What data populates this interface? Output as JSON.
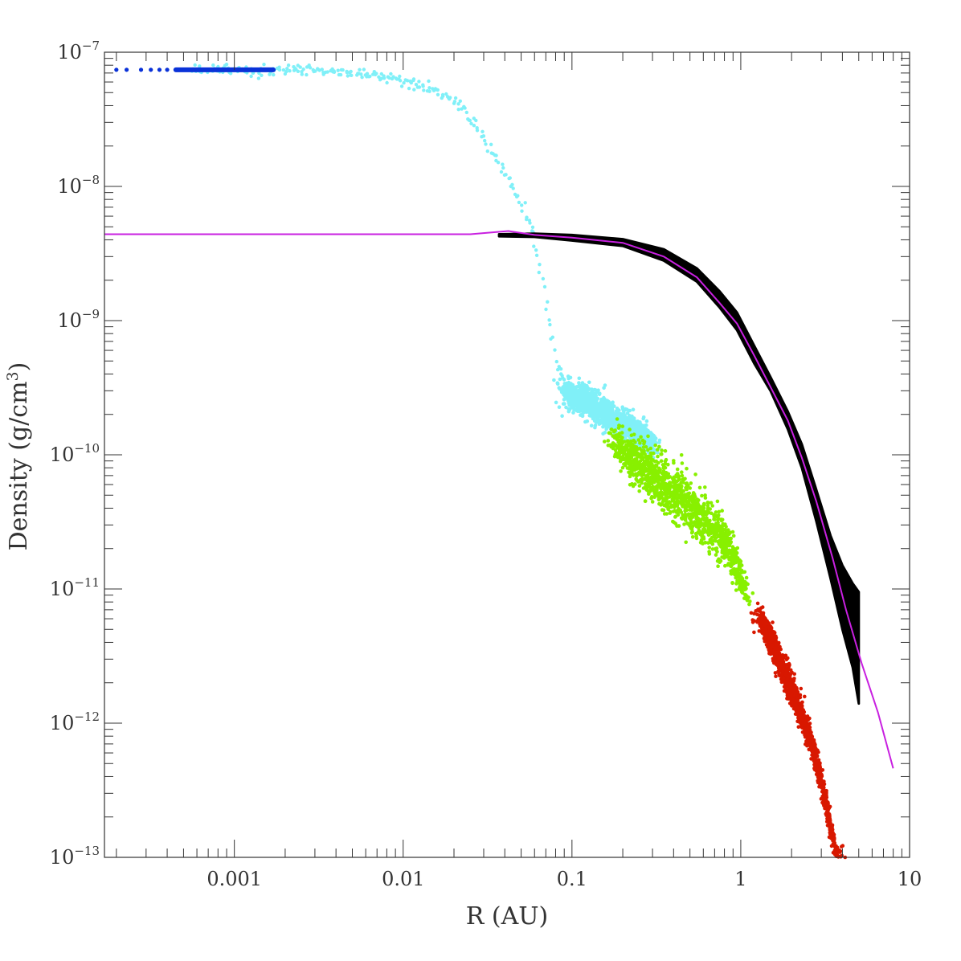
{
  "chart_data": {
    "type": "scatter",
    "xlabel": "R (AU)",
    "ylabel_text": "Density (g/cm",
    "ylabel_sup": "3",
    "ylabel_close": ")",
    "xscale": "log",
    "yscale": "log",
    "xlim": [
      0.00017,
      10
    ],
    "ylim": [
      1e-13,
      1e-07
    ],
    "x_ticks": [
      {
        "value": 0.001,
        "label": "0.001"
      },
      {
        "value": 0.01,
        "label": "0.01"
      },
      {
        "value": 0.1,
        "label": "0.1"
      },
      {
        "value": 1,
        "label": "1"
      },
      {
        "value": 10,
        "label": "10"
      }
    ],
    "y_ticks": [
      {
        "value": 1e-07,
        "base": "10",
        "exp": "−7"
      },
      {
        "value": 1e-08,
        "base": "10",
        "exp": "−8"
      },
      {
        "value": 1e-09,
        "base": "10",
        "exp": "−9"
      },
      {
        "value": 1e-10,
        "base": "10",
        "exp": "−10"
      },
      {
        "value": 1e-11,
        "base": "10",
        "exp": "−11"
      },
      {
        "value": 1e-12,
        "base": "10",
        "exp": "−12"
      },
      {
        "value": 1e-13,
        "base": "10",
        "exp": "−13"
      }
    ],
    "colors": {
      "black": "#000000",
      "cyan": "#80f0f8",
      "green": "#88f000",
      "red": "#d81800",
      "blue": "#0a32d8",
      "magenta": "#c820e0"
    },
    "series": [
      {
        "color": "magenta",
        "kind": "line",
        "points": [
          [
            0.00017,
            4.4e-09
          ],
          [
            0.025,
            4.4e-09
          ],
          [
            0.042,
            4.65e-09
          ],
          [
            0.06,
            4.35e-09
          ],
          [
            0.1,
            4.15e-09
          ],
          [
            0.2,
            3.8e-09
          ],
          [
            0.35,
            3e-09
          ],
          [
            0.55,
            2.1e-09
          ],
          [
            0.75,
            1.35e-09
          ],
          [
            0.95,
            9.5e-10
          ],
          [
            1.2,
            5.5e-10
          ],
          [
            1.5,
            3.2e-10
          ],
          [
            1.9,
            1.8e-10
          ],
          [
            2.3,
            9.5e-11
          ],
          [
            2.8,
            4.5e-11
          ],
          [
            3.5,
            1.7e-11
          ],
          [
            4.2,
            7e-12
          ],
          [
            5.2,
            2.8e-12
          ],
          [
            6.5,
            1.2e-12
          ],
          [
            8.0,
            4.6e-13
          ]
        ]
      },
      {
        "color": "black",
        "kind": "band",
        "points": [
          [
            0.037,
            4.4e-09,
            4.25e-09
          ],
          [
            0.06,
            4.45e-09,
            4.2e-09
          ],
          [
            0.1,
            4.35e-09,
            3.95e-09
          ],
          [
            0.2,
            4.05e-09,
            3.6e-09
          ],
          [
            0.35,
            3.4e-09,
            2.8e-09
          ],
          [
            0.55,
            2.45e-09,
            1.95e-09
          ],
          [
            0.75,
            1.65e-09,
            1.25e-09
          ],
          [
            0.95,
            1.15e-09,
            8.5e-10
          ],
          [
            1.2,
            6.5e-10,
            4.8e-10
          ],
          [
            1.5,
            3.8e-10,
            3e-10
          ],
          [
            1.9,
            2.1e-10,
            1.55e-10
          ],
          [
            2.3,
            1.2e-10,
            8e-11
          ],
          [
            2.8,
            5.5e-11,
            3.2e-11
          ],
          [
            3.4,
            2.5e-11,
            1.2e-11
          ],
          [
            4.0,
            1.5e-11,
            5e-12
          ],
          [
            4.6,
            1.1e-11,
            2.6e-12
          ],
          [
            5.0,
            9.5e-12,
            1.4e-12
          ]
        ]
      },
      {
        "color": "cyan",
        "kind": "curve",
        "points": [
          [
            0.00055,
            7.4e-08
          ],
          [
            0.002,
            7.35e-08
          ],
          [
            0.004,
            7.1e-08
          ],
          [
            0.008,
            6.6e-08
          ],
          [
            0.012,
            5.9e-08
          ],
          [
            0.016,
            5.1e-08
          ],
          [
            0.02,
            4.3e-08
          ],
          [
            0.025,
            3.2e-08
          ],
          [
            0.03,
            2.3e-08
          ],
          [
            0.035,
            1.7e-08
          ],
          [
            0.04,
            1.25e-08
          ],
          [
            0.045,
            9.5e-09
          ],
          [
            0.05,
            7.2e-09
          ],
          [
            0.055,
            5.5e-09
          ],
          [
            0.06,
            4.1e-09
          ],
          [
            0.065,
            2.5e-09
          ],
          [
            0.07,
            1.4e-09
          ],
          [
            0.075,
            8e-10
          ],
          [
            0.08,
            5e-10
          ],
          [
            0.09,
            3.5e-10
          ]
        ]
      },
      {
        "color": "cyan",
        "kind": "cloud",
        "points": [
          [
            0.09,
            3e-10,
            0.1
          ],
          [
            0.12,
            2.5e-10,
            0.12
          ],
          [
            0.16,
            2e-10,
            0.11
          ],
          [
            0.22,
            1.6e-10,
            0.1
          ],
          [
            0.3,
            1.25e-10,
            0.08
          ]
        ]
      },
      {
        "color": "green",
        "kind": "cloud",
        "points": [
          [
            0.18,
            1.2e-10,
            0.14
          ],
          [
            0.25,
            8.5e-11,
            0.17
          ],
          [
            0.35,
            6e-11,
            0.19
          ],
          [
            0.5,
            4.2e-11,
            0.2
          ],
          [
            0.65,
            3e-11,
            0.19
          ],
          [
            0.8,
            2.2e-11,
            0.17
          ],
          [
            0.95,
            1.5e-11,
            0.14
          ],
          [
            1.05,
            1e-11,
            0.11
          ]
        ]
      },
      {
        "color": "red",
        "kind": "cloud",
        "points": [
          [
            1.3,
            6e-12,
            0.1
          ],
          [
            1.6,
            3.5e-12,
            0.12
          ],
          [
            2.0,
            1.8e-12,
            0.12
          ],
          [
            2.5,
            8.5e-13,
            0.11
          ],
          [
            3.0,
            3.8e-13,
            0.1
          ],
          [
            3.4,
            1.7e-13,
            0.09
          ],
          [
            3.7,
            1.05e-13,
            0.06
          ]
        ]
      },
      {
        "color": "blue",
        "kind": "segment",
        "points": [
          [
            0.00045,
            7.4e-08
          ],
          [
            0.0017,
            7.4e-08
          ]
        ]
      },
      {
        "color": "blue",
        "kind": "dots",
        "points": [
          [
            0.0002,
            7.4e-08
          ],
          [
            0.00023,
            7.4e-08
          ],
          [
            0.00028,
            7.4e-08
          ],
          [
            0.00032,
            7.4e-08
          ],
          [
            0.00036,
            7.4e-08
          ],
          [
            0.0004,
            7.4e-08
          ]
        ]
      }
    ]
  }
}
